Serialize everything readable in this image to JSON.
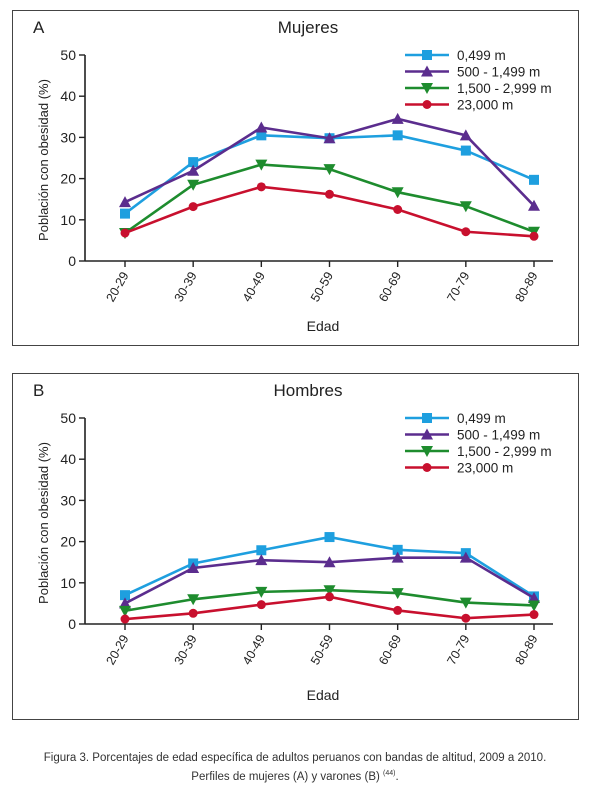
{
  "caption": {
    "line1": "Figura 3. Porcentajes de edad específica de adultos peruanos con bandas de altitud, 2009 a 2010.",
    "line2": "Perfiles de mujeres (A) y varones (B)",
    "ref": "(44)"
  },
  "colors": {
    "0,499 m": "#1e9fdf",
    "500 - 1,499 m": "#5b2d8e",
    "1,500 - 2,999 m": "#1e8c2e",
    "23,000 m": "#c8102e"
  },
  "chart_data": [
    {
      "type": "line",
      "panel_letter": "A",
      "title": "Mujeres",
      "xlabel": "Edad",
      "ylabel": "Población con obesidad (%)",
      "ylim": [
        0,
        50
      ],
      "yticks": [
        0,
        10,
        20,
        30,
        40,
        50
      ],
      "categories": [
        "20-29",
        "30-39",
        "40-49",
        "50-59",
        "60-69",
        "70-79",
        "80-89"
      ],
      "legend_position": "top-right",
      "series": [
        {
          "name": "0,499 m",
          "marker": "square",
          "values": [
            11.5,
            24,
            30.5,
            29.8,
            30.5,
            26.8,
            19.7
          ]
        },
        {
          "name": "500 - 1,499 m",
          "marker": "triangle-up",
          "values": [
            14.3,
            21.9,
            32.4,
            29.8,
            34.5,
            30.5,
            13.4
          ]
        },
        {
          "name": "1,500 - 2,999 m",
          "marker": "triangle-down",
          "values": [
            6.8,
            18.5,
            23.4,
            22.3,
            16.7,
            13.3,
            7.1
          ]
        },
        {
          "name": "23,000 m",
          "marker": "circle",
          "values": [
            6.8,
            13.2,
            18,
            16.2,
            12.5,
            7.1,
            6
          ]
        }
      ]
    },
    {
      "type": "line",
      "panel_letter": "B",
      "title": "Hombres",
      "xlabel": "Edad",
      "ylabel": "Población con obesidad (%)",
      "ylim": [
        0,
        50
      ],
      "yticks": [
        0,
        10,
        20,
        30,
        40,
        50
      ],
      "categories": [
        "20-29",
        "30-39",
        "40-49",
        "50-59",
        "60-69",
        "70-79",
        "80-89"
      ],
      "legend_position": "top-right",
      "series": [
        {
          "name": "0,499 m",
          "marker": "square",
          "values": [
            7,
            14.7,
            17.9,
            21.1,
            18,
            17.2,
            6.7
          ]
        },
        {
          "name": "500 - 1,499 m",
          "marker": "triangle-up",
          "values": [
            5,
            13.6,
            15.5,
            15,
            16.1,
            16.1,
            6.3
          ]
        },
        {
          "name": "1,500 - 2,999 m",
          "marker": "triangle-down",
          "values": [
            3.2,
            6,
            7.8,
            8.2,
            7.5,
            5.2,
            4.5
          ]
        },
        {
          "name": "23,000 m",
          "marker": "circle",
          "values": [
            1.2,
            2.6,
            4.7,
            6.6,
            3.3,
            1.4,
            2.3
          ]
        }
      ]
    }
  ]
}
